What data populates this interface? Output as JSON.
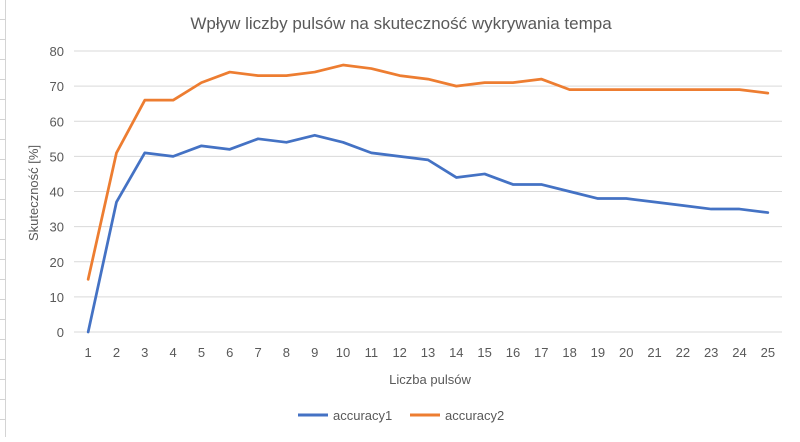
{
  "chart_data": {
    "type": "line",
    "title": "Wpływ liczby pulsów na skuteczność wykrywania tempa",
    "xlabel": "Liczba pulsów",
    "ylabel": "Skuteczność [%]",
    "ylim": [
      0,
      80
    ],
    "yticks": [
      "0",
      "10",
      "20",
      "30",
      "40",
      "50",
      "60",
      "70",
      "80"
    ],
    "grid": true,
    "legend_position": "bottom",
    "x": [
      "1",
      "2",
      "3",
      "4",
      "5",
      "6",
      "7",
      "8",
      "9",
      "10",
      "11",
      "12",
      "13",
      "14",
      "15",
      "16",
      "17",
      "18",
      "19",
      "20",
      "21",
      "22",
      "23",
      "24",
      "25"
    ],
    "series": [
      {
        "name": "accuracy1",
        "color": "#4472C4",
        "values": [
          0,
          37,
          51,
          50,
          53,
          52,
          55,
          54,
          56,
          54,
          51,
          50,
          49,
          44,
          45,
          42,
          42,
          40,
          38,
          38,
          37,
          36,
          35,
          35,
          34
        ]
      },
      {
        "name": "accuracy2",
        "color": "#ED7D31",
        "values": [
          15,
          51,
          66,
          66,
          71,
          74,
          73,
          73,
          74,
          76,
          75,
          73,
          72,
          70,
          71,
          71,
          72,
          69,
          69,
          69,
          69,
          69,
          69,
          69,
          68
        ]
      }
    ],
    "colors": {
      "grid": "#D9D9D9",
      "text": "#595959"
    }
  }
}
